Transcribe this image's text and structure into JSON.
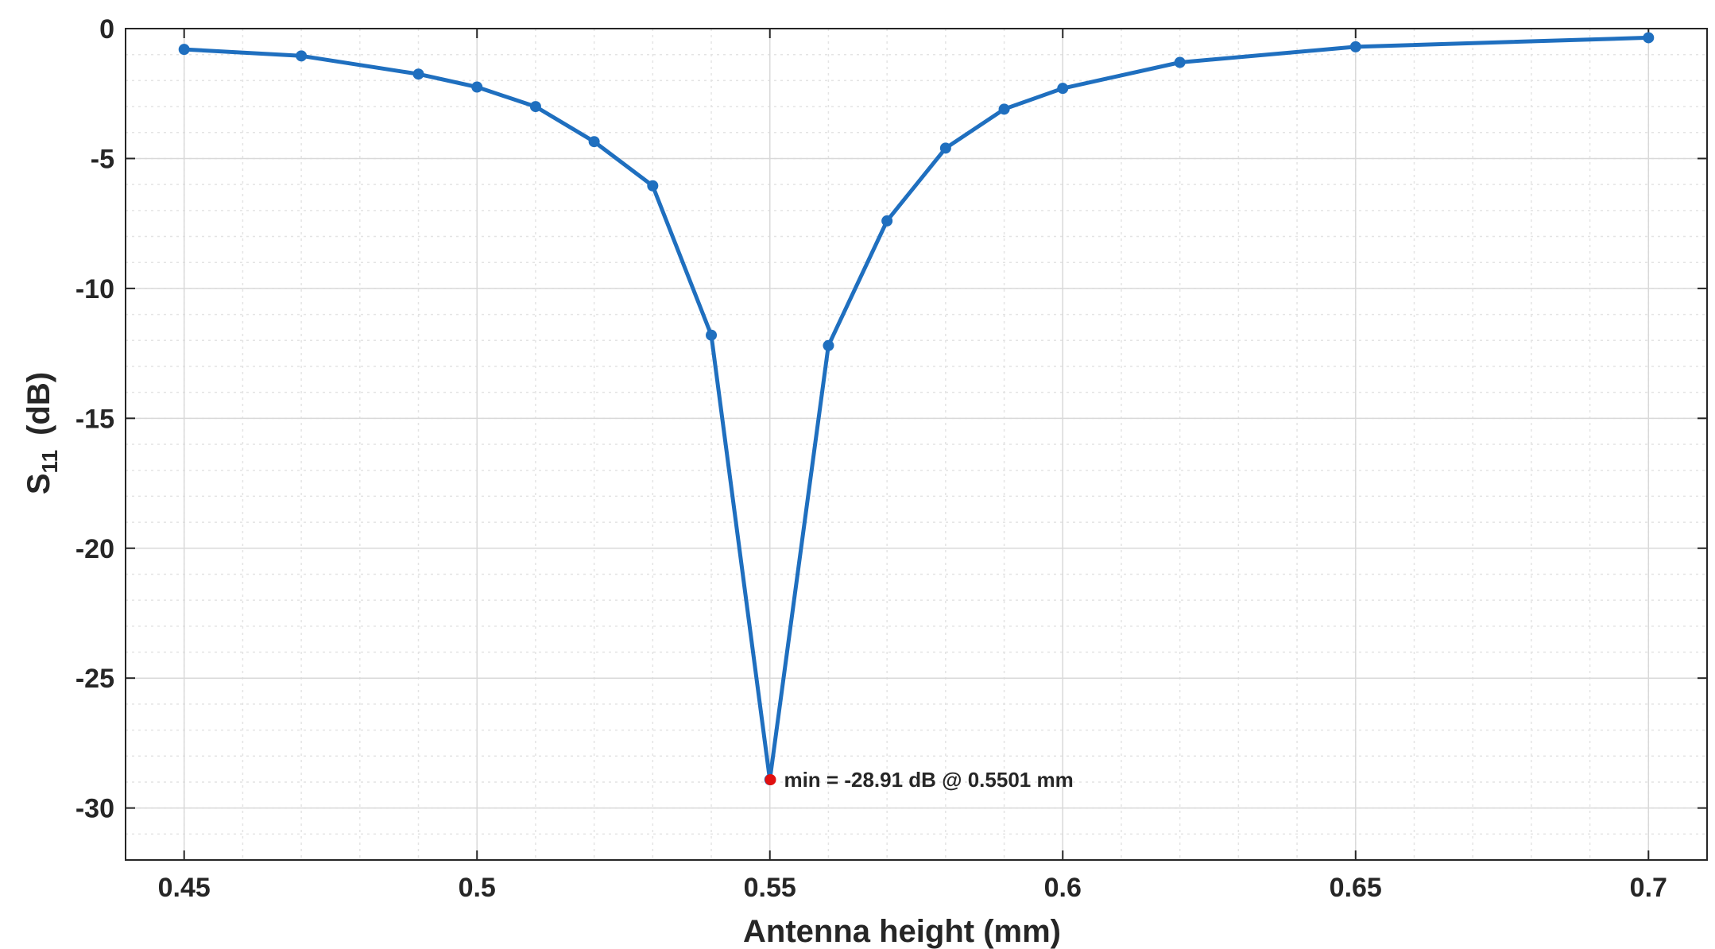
{
  "chart_data": {
    "type": "line",
    "xlabel": "Antenna height (mm)",
    "ylabel_main": "S",
    "ylabel_sub": "11",
    "ylabel_unit": "(dB)",
    "xlim": [
      0.44,
      0.71
    ],
    "ylim": [
      -32,
      0
    ],
    "x_ticks": [
      0.45,
      0.5,
      0.55,
      0.6,
      0.65,
      0.7
    ],
    "x_tick_labels": [
      "0.45",
      "0.5",
      "0.55",
      "0.6",
      "0.65",
      "0.7"
    ],
    "y_ticks": [
      0,
      -5,
      -10,
      -15,
      -20,
      -25,
      -30
    ],
    "y_tick_labels": [
      "0",
      "-5",
      "-10",
      "-15",
      "-20",
      "-25",
      "-30"
    ],
    "grid": true,
    "minor_grid": true,
    "series": [
      {
        "color": "#1f6fbf",
        "x": [
          0.45,
          0.47,
          0.49,
          0.5,
          0.51,
          0.52,
          0.53,
          0.54,
          0.55,
          0.56,
          0.57,
          0.58,
          0.59,
          0.6,
          0.62,
          0.65,
          0.7
        ],
        "y": [
          -0.8,
          -1.05,
          -1.75,
          -2.25,
          -3.0,
          -4.35,
          -6.05,
          -11.8,
          -28.91,
          -12.2,
          -7.4,
          -4.6,
          -3.1,
          -2.3,
          -1.3,
          -0.7,
          -0.35
        ]
      }
    ],
    "annotation": {
      "x": 0.5501,
      "y": -28.91,
      "text": "min = -28.91 dB @ 0.5501 mm",
      "color": "#e01010"
    }
  }
}
